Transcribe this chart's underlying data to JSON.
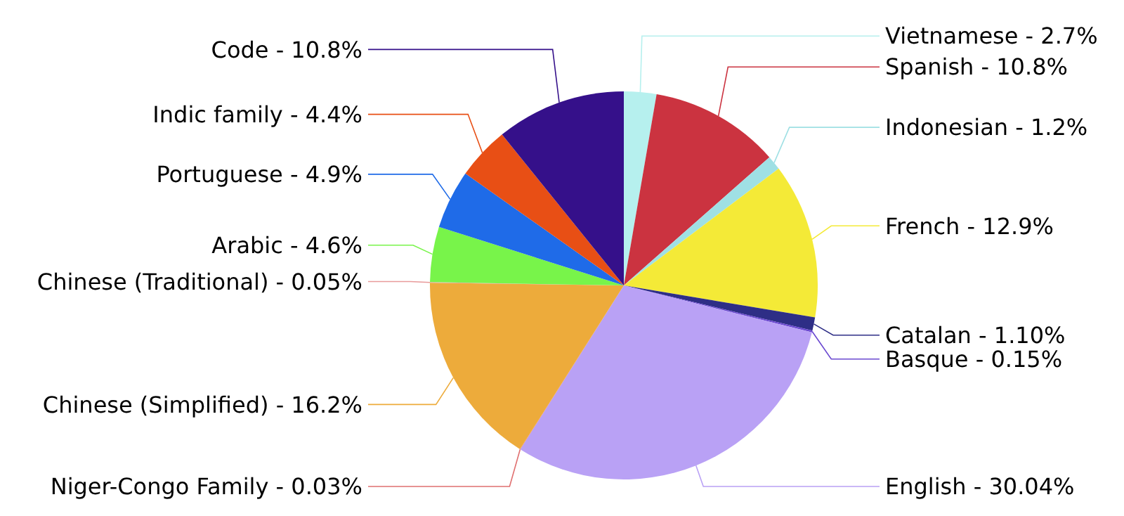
{
  "chart_data": {
    "type": "pie",
    "categories": [
      "Vietnamese",
      "Spanish",
      "Indonesian",
      "French",
      "Catalan",
      "Basque",
      "English",
      "Niger-Congo Family",
      "Chinese (Simplified)",
      "Chinese (Traditional)",
      "Arabic",
      "Portuguese",
      "Indic family",
      "Code"
    ],
    "values": [
      2.7,
      10.8,
      1.2,
      12.9,
      1.1,
      0.15,
      30.04,
      0.03,
      16.2,
      0.05,
      4.6,
      4.9,
      4.4,
      10.8
    ],
    "value_labels": [
      "2.7%",
      "10.8%",
      "1.2%",
      "12.9%",
      "1.10%",
      "0.15%",
      "30.04%",
      "0.03%",
      "16.2%",
      "0.05%",
      "4.6%",
      "4.9%",
      "4.4%",
      "10.8%"
    ],
    "colors": [
      "#b6f0ee",
      "#cb3340",
      "#9fe0e4",
      "#f4ea37",
      "#2e2e86",
      "#6a48d0",
      "#b9a1f5",
      "#e07070",
      "#edab3b",
      "#e89a9a",
      "#78f44a",
      "#1f6be8",
      "#e84f15",
      "#35108a"
    ],
    "legend": false
  }
}
